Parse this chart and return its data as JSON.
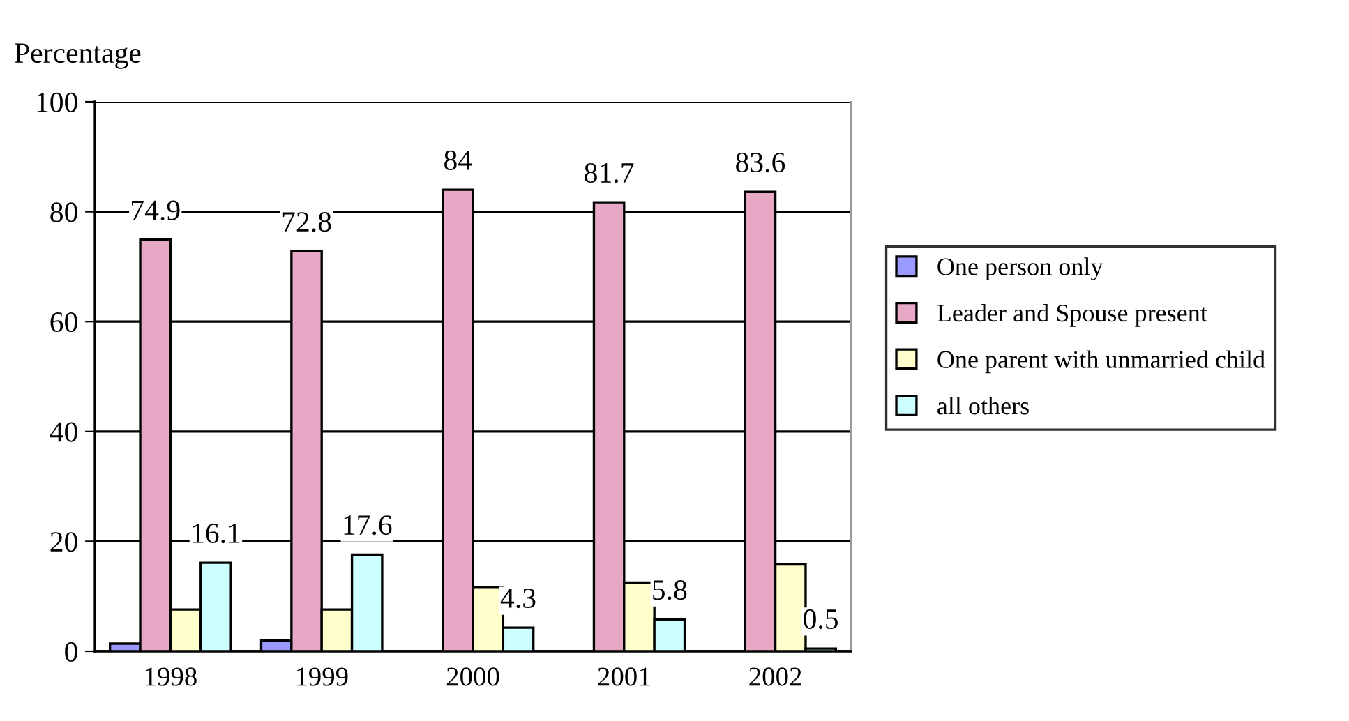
{
  "chart_data": {
    "type": "bar",
    "ylabel": "Percentage",
    "categories": [
      "1998",
      "1999",
      "2000",
      "2001",
      "2002"
    ],
    "series": [
      {
        "name": "One person only",
        "color": "#9999ff",
        "values": [
          1.4,
          2.0,
          null,
          null,
          null
        ]
      },
      {
        "name": "Leader and Spouse present",
        "color": "#e6a8c4",
        "values": [
          74.9,
          72.8,
          84,
          81.7,
          83.6
        ],
        "value_labels": [
          "74.9",
          "72.8",
          "84",
          "81.7",
          "83.6"
        ]
      },
      {
        "name": "One parent with unmarried child",
        "color": "#ffffcc",
        "values": [
          7.6,
          7.6,
          11.7,
          12.5,
          15.9
        ]
      },
      {
        "name": "all others",
        "color": "#ccffff",
        "values": [
          16.1,
          17.6,
          4.3,
          5.8,
          0.5
        ],
        "value_labels": [
          "16.1",
          "17.6",
          "4.3",
          "5.8",
          "0.5"
        ]
      }
    ],
    "ylim": [
      0,
      100
    ],
    "yticks": [
      0,
      20,
      40,
      60,
      80,
      100
    ],
    "grid": "y",
    "legend": "right"
  }
}
